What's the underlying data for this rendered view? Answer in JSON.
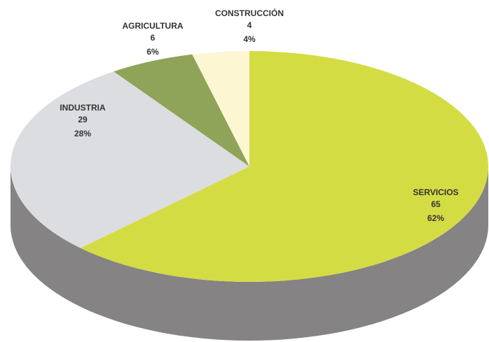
{
  "chart_data": {
    "type": "pie",
    "categories": [
      "SERVICIOS",
      "INDUSTRIA",
      "AGRICULTURA",
      "CONSTRUCCIÓN"
    ],
    "values": [
      65,
      29,
      6,
      4
    ],
    "percentages": [
      {
        "value": 62,
        "label": "62%"
      },
      {
        "value": 28,
        "label": "28%"
      },
      {
        "value": 6,
        "label": "6%"
      },
      {
        "value": 4,
        "label": "4%"
      }
    ],
    "colors": [
      "#d4dc44",
      "#dcdde0",
      "#8fa458",
      "#fdf6d2"
    ],
    "side_color": "#858384"
  }
}
